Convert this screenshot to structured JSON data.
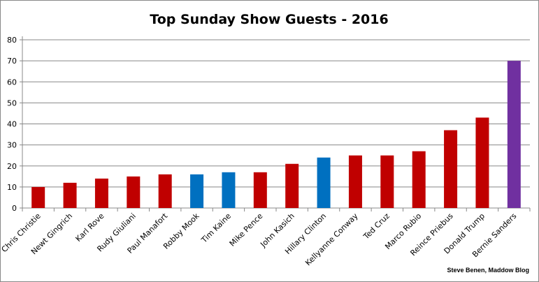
{
  "chart_data": {
    "type": "bar",
    "title": "Top Sunday Show Guests - 2016",
    "xlabel": "",
    "ylabel": "",
    "ylim": [
      0,
      80
    ],
    "yticks": [
      0,
      10,
      20,
      30,
      40,
      50,
      60,
      70,
      80
    ],
    "grid": true,
    "categories": [
      "Chris Christie",
      "Newt Gingrich",
      "Karl Rove",
      "Rudy Giuliani",
      "Paul Manafort",
      "Robby Mook",
      "Tim Kaine",
      "Mike Pence",
      "John Kasich",
      "Hillary Clinton",
      "Kellyanne Conway",
      "Ted Cruz",
      "Marco Rubio",
      "Reince Priebus",
      "Donald Trump",
      "Bernie Sanders"
    ],
    "values": [
      10,
      12,
      14,
      15,
      16,
      16,
      17,
      17,
      21,
      24,
      25,
      25,
      27,
      37,
      43,
      70
    ],
    "bar_colors": [
      "#c00000",
      "#c00000",
      "#c00000",
      "#c00000",
      "#c00000",
      "#0070c0",
      "#0070c0",
      "#c00000",
      "#c00000",
      "#0070c0",
      "#c00000",
      "#c00000",
      "#c00000",
      "#c00000",
      "#c00000",
      "#7030a0"
    ]
  },
  "credit": "Steve Benen, Maddow Blog"
}
